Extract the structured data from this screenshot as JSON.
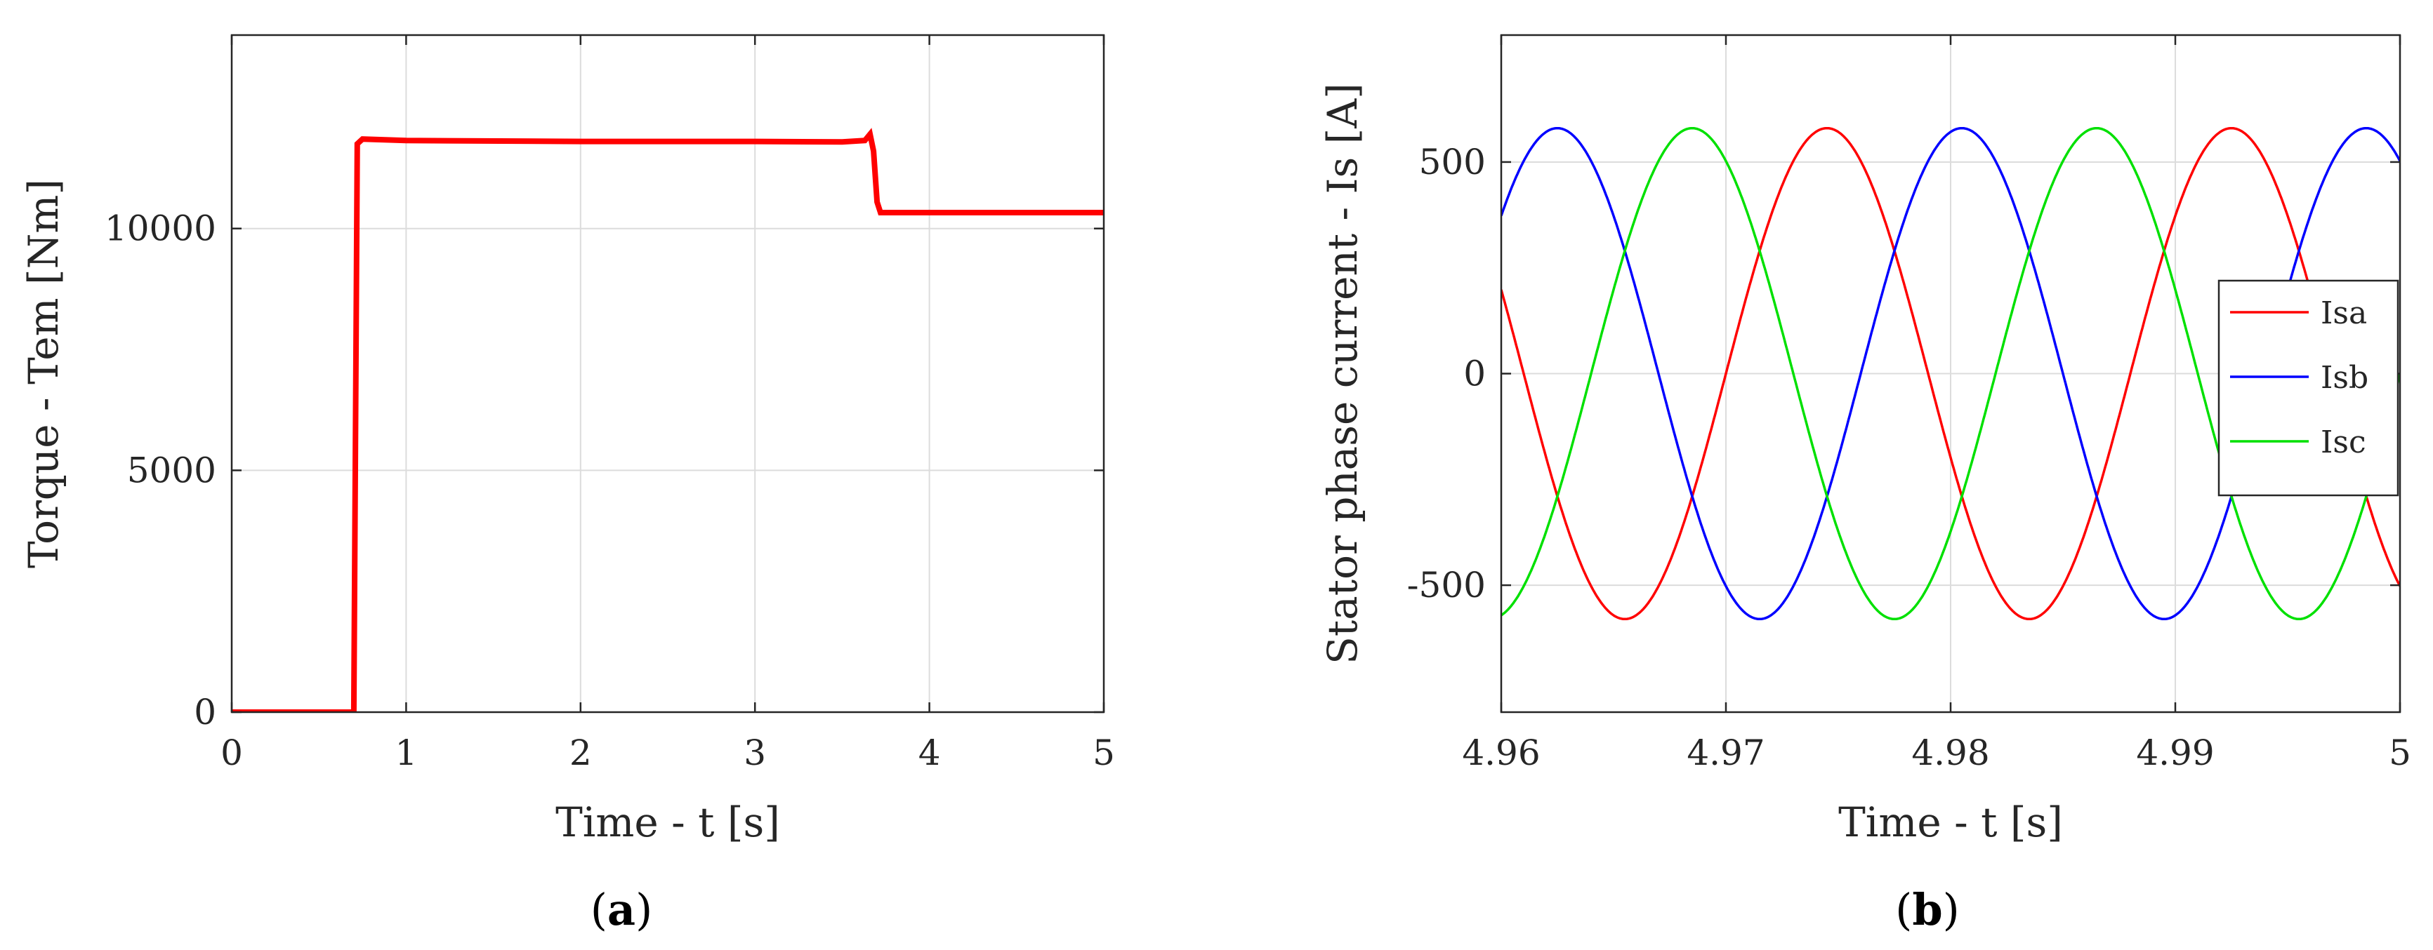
{
  "chart_data": [
    {
      "type": "line",
      "title": "",
      "xlabel": "Time - t [s]",
      "ylabel": "Torque - Tem [Nm]",
      "xlim": [
        0,
        5
      ],
      "ylim": [
        0,
        14000
      ],
      "xticks": [
        0,
        1,
        2,
        3,
        4,
        5
      ],
      "xtick_labels": [
        "0",
        "1",
        "2",
        "3",
        "4",
        "5"
      ],
      "yticks": [
        0,
        5000,
        10000
      ],
      "ytick_labels": [
        "0",
        "5000",
        "10000"
      ],
      "grid": true,
      "legend": null,
      "panel_label": {
        "open": "(",
        "letter": "a",
        "close": ")"
      },
      "series": [
        {
          "color": "#ff0000",
          "x": [
            0,
            0.7,
            0.72,
            0.75,
            1.0,
            2.0,
            3.0,
            3.5,
            3.63,
            3.66,
            3.68,
            3.7,
            3.72,
            4.0,
            5.0
          ],
          "y": [
            0,
            0,
            11750,
            11850,
            11820,
            11800,
            11800,
            11790,
            11820,
            11950,
            11600,
            10550,
            10330,
            10330,
            10330
          ]
        }
      ]
    },
    {
      "type": "line",
      "title": "",
      "xlabel": "Time - t [s]",
      "ylabel": "Stator phase current - Is [A]",
      "xlim": [
        4.96,
        5.0
      ],
      "ylim": [
        -800,
        800
      ],
      "xticks": [
        4.96,
        4.97,
        4.98,
        4.99,
        5.0
      ],
      "xtick_labels": [
        "4.96",
        "4.97",
        "4.98",
        "4.99",
        "5"
      ],
      "yticks": [
        -500,
        0,
        500
      ],
      "ytick_labels": [
        "-500",
        "0",
        "500"
      ],
      "grid": true,
      "legend": "right",
      "panel_label": {
        "open": "(",
        "letter": "b",
        "close": ")"
      },
      "series": [
        {
          "name": "Isa",
          "color": "#ff0000",
          "amplitude": 580,
          "period": 0.018,
          "peak_time": 4.9745
        },
        {
          "name": "Isb",
          "color": "#0000ff",
          "amplitude": 580,
          "period": 0.018,
          "peak_time": 4.9625
        },
        {
          "name": "Isc",
          "color": "#00e000",
          "amplitude": 580,
          "period": 0.018,
          "peak_time": 4.9685
        }
      ]
    }
  ]
}
